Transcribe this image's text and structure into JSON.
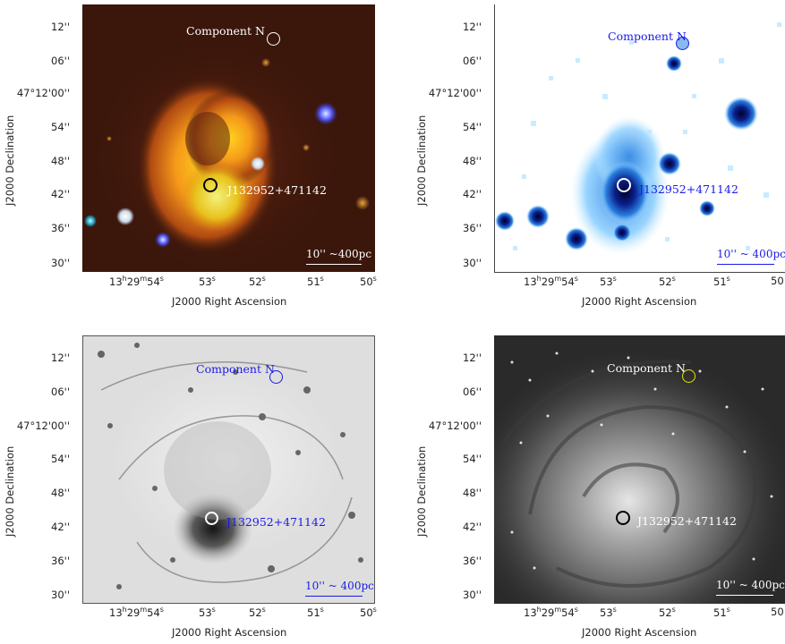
{
  "axes": {
    "xlabel": "J2000 Right Ascension",
    "ylabel": "J2000 Declination",
    "yticks": [
      "12''",
      "06''",
      "47°12'00''",
      "54''",
      "48''",
      "42''",
      "36''",
      "30''"
    ],
    "xticks_top": [
      {
        "h": "13",
        "hs": "h",
        "m": "29",
        "ms": "m",
        "s": "54",
        "ss": "s"
      },
      {
        "s": "53",
        "ss": "s"
      },
      {
        "s": "52",
        "ss": "s"
      },
      {
        "s": "51",
        "ss": "s"
      },
      {
        "s": "50",
        "ss": "s"
      }
    ],
    "xticks_right": [
      {
        "h": "13",
        "hs": "h",
        "m": "29",
        "ms": "m",
        "s": "54",
        "ss": "s"
      },
      {
        "s": "53",
        "ss": "s"
      },
      {
        "s": "52",
        "ss": "s"
      },
      {
        "s": "51",
        "ss": "s"
      },
      {
        "s": "50",
        "ss": ""
      }
    ]
  },
  "labels": {
    "component": "Component N",
    "source": "J132952+471142",
    "scale_p1": "10'' ~400pc",
    "scale_p2": "10'' ~ 400pc",
    "scale_p3": "10'' ~ 400pc",
    "scale_p4": "10'' ~ 400pc"
  },
  "colors": {
    "blue": "#1a1ae6",
    "yellow": "#e6e600",
    "white": "#ffffff",
    "black": "#000000"
  }
}
